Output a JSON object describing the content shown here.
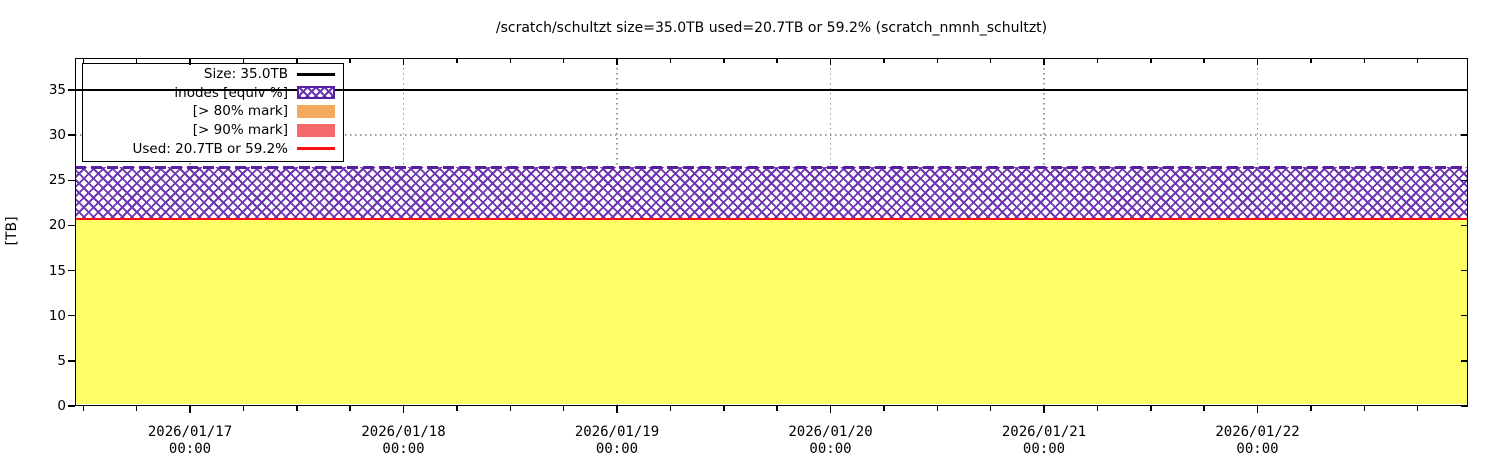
{
  "title": "/scratch/schultzt size=35.0TB used=20.7TB or 59.2% (scratch_nmnh_schultzt)",
  "ylabel": "[TB]",
  "legend": {
    "position": "top-left",
    "items": [
      {
        "label": "Size: 35.0TB",
        "swatch": "black-line"
      },
      {
        "label": "inodes [equiv %]",
        "swatch": "purple-crosshatch"
      },
      {
        "label": "[> 80% mark]",
        "swatch": "orange-fill"
      },
      {
        "label": "[> 90% mark]",
        "swatch": "red-fill"
      },
      {
        "label": "Used: 20.7TB or 59.2%",
        "swatch": "red-line"
      }
    ]
  },
  "chart_data": {
    "type": "area",
    "title": "/scratch/schultzt size=35.0TB used=20.7TB or 59.2% (scratch_nmnh_schultzt)",
    "xlabel": "",
    "ylabel": "[TB]",
    "ylim": [
      0,
      38.5
    ],
    "yticks": [
      0,
      5,
      10,
      15,
      20,
      25,
      30,
      35
    ],
    "x_major_ticks": [
      {
        "date": "2026/01/17",
        "time": "00:00"
      },
      {
        "date": "2026/01/18",
        "time": "00:00"
      },
      {
        "date": "2026/01/19",
        "time": "00:00"
      },
      {
        "date": "2026/01/20",
        "time": "00:00"
      },
      {
        "date": "2026/01/21",
        "time": "00:00"
      },
      {
        "date": "2026/01/22",
        "time": "00:00"
      }
    ],
    "x_minor_interval_hours": 6,
    "grid": "dotted gray at major ticks",
    "legend_position": "top-left",
    "size_tb": 35.0,
    "used_tb": 20.7,
    "used_pct": 59.2,
    "inodes_equiv_tb": 26.45,
    "series": [
      {
        "name": "Size: 35.0TB",
        "type": "line",
        "style": "solid-black",
        "constant_value_tb": 35.0
      },
      {
        "name": "inodes [equiv %]",
        "type": "area",
        "style": "purple-crosshatch-white",
        "constant_value_tb": 26.45
      },
      {
        "name": "[> 80% mark]",
        "type": "threshold-band",
        "style": "orange-fill",
        "constant_value_tb": null
      },
      {
        "name": "[> 90% mark]",
        "type": "threshold-band",
        "style": "red-fill",
        "constant_value_tb": null
      },
      {
        "name": "Used: 20.7TB or 59.2%",
        "type": "area-line",
        "style": "yellow-fill-red-line",
        "constant_value_tb": 20.7
      }
    ]
  },
  "colors": {
    "yellow": "#fdfd66",
    "red": "#ff0f0f",
    "hatch": "#6e35b2",
    "hatchdark": "#5a20a2",
    "orange": "#f5a95e",
    "salmon": "#f5696a",
    "grid": "#999999"
  }
}
